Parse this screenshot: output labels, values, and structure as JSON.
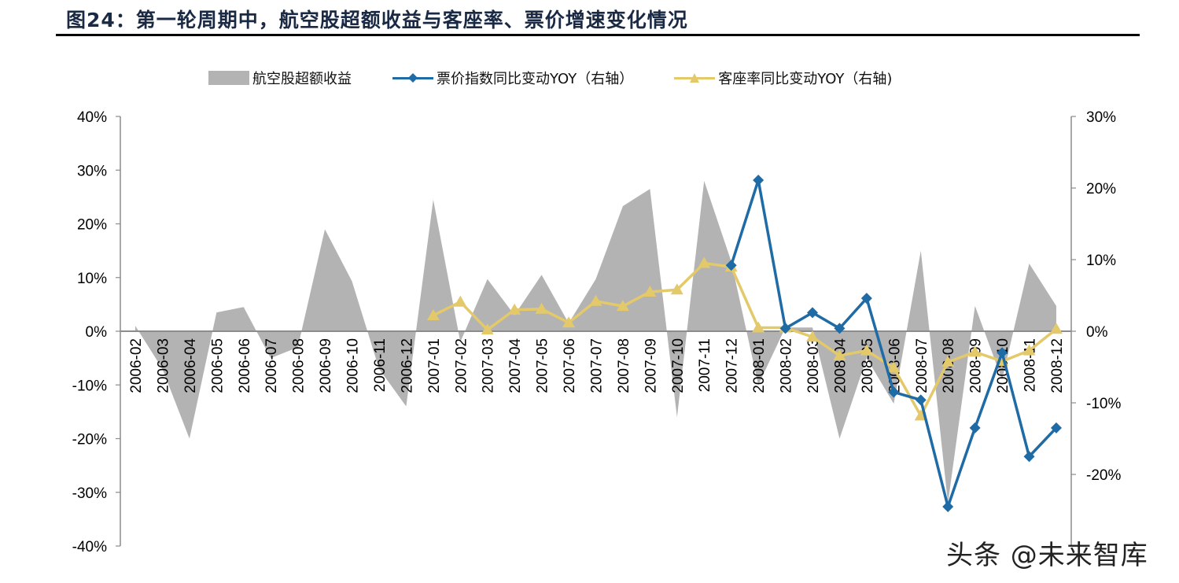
{
  "header": {
    "title": "图24：第一轮周期中，航空股超额收益与客座率、票价增速变化情况"
  },
  "legend": {
    "items": [
      {
        "label": "航空股超额收益",
        "type": "area",
        "color": "#b3b3b3"
      },
      {
        "label": "票价指数同比变动YOY（右轴）",
        "type": "line-diamond",
        "color": "#1f6ba5"
      },
      {
        "label": "客座率同比变动YOY（右轴)",
        "type": "line-triangle",
        "color": "#e3c96a"
      }
    ]
  },
  "watermark": "头条 @未来智库",
  "colors": {
    "area": "#b3b3b3",
    "fare": "#1f6ba5",
    "load": "#e3c96a",
    "axis": "#8c8c8c",
    "text": "#000000"
  },
  "chart_data": {
    "type": "line",
    "title": "第一轮周期中，航空股超额收益与客座率、票价增速变化情况",
    "xlabel": "",
    "ylabel": "",
    "categories": [
      "2006-02",
      "2006-03",
      "2006-04",
      "2006-05",
      "2006-06",
      "2006-07",
      "2006-08",
      "2006-09",
      "2006-10",
      "2006-11",
      "2006-12",
      "2007-01",
      "2007-02",
      "2007-03",
      "2007-04",
      "2007-05",
      "2007-06",
      "2007-07",
      "2007-08",
      "2007-09",
      "2007-10",
      "2007-11",
      "2007-12",
      "2008-01",
      "2008-02",
      "2008-03",
      "2008-04",
      "2008-05",
      "2008-06",
      "2008-07",
      "2008-08",
      "2008-09",
      "2008-10",
      "2008-11",
      "2008-12"
    ],
    "left_axis": {
      "ylim": [
        -0.4,
        0.4
      ],
      "ticks": [
        "40%",
        "30%",
        "20%",
        "10%",
        "0%",
        "-10%",
        "-20%",
        "-30%",
        "-40%"
      ]
    },
    "right_axis": {
      "ylim": [
        -0.3,
        0.3
      ],
      "ticks": [
        "30%",
        "20%",
        "10%",
        "0%",
        "-10%",
        "-20%"
      ]
    },
    "legend_position": "top",
    "grid": false,
    "series": [
      {
        "name": "航空股超额收益",
        "type": "area",
        "axis": "left",
        "values": [
          0.01,
          -0.07,
          -0.2,
          0.035,
          0.045,
          -0.05,
          -0.03,
          0.19,
          0.093,
          -0.07,
          -0.14,
          0.245,
          -0.02,
          0.097,
          0.03,
          0.105,
          0.015,
          0.097,
          0.233,
          0.265,
          -0.16,
          0.28,
          0.13,
          -0.1,
          0.007,
          0.007,
          -0.2,
          -0.05,
          -0.135,
          0.15,
          -0.32,
          0.047,
          -0.09,
          0.126,
          0.047
        ]
      },
      {
        "name": "票价指数同比变动YOY（右轴）",
        "type": "line",
        "marker": "diamond",
        "axis": "right",
        "values": [
          null,
          null,
          null,
          null,
          null,
          null,
          null,
          null,
          null,
          null,
          null,
          null,
          null,
          null,
          null,
          null,
          null,
          null,
          null,
          null,
          null,
          null,
          0.092,
          0.211,
          0.004,
          0.026,
          0.004,
          0.046,
          -0.085,
          -0.096,
          -0.245,
          -0.135,
          -0.03,
          -0.175,
          -0.135
        ]
      },
      {
        "name": "客座率同比变动YOY（右轴)",
        "type": "line",
        "marker": "triangle",
        "axis": "right",
        "values": [
          null,
          null,
          null,
          null,
          null,
          null,
          null,
          null,
          null,
          null,
          null,
          0.022,
          0.041,
          0.002,
          0.03,
          0.031,
          0.012,
          0.042,
          0.035,
          0.055,
          0.058,
          0.095,
          0.09,
          0.005,
          0.005,
          -0.008,
          -0.034,
          -0.027,
          -0.051,
          -0.118,
          -0.043,
          -0.029,
          -0.042,
          -0.027,
          0.003
        ]
      }
    ]
  }
}
